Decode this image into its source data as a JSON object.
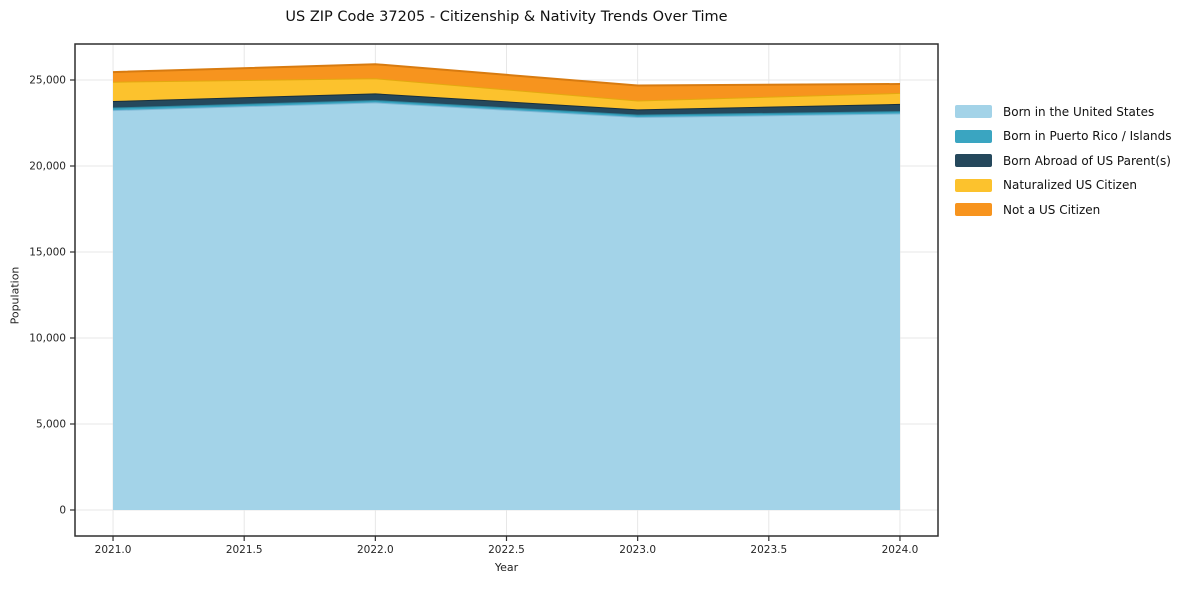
{
  "chart_data": {
    "type": "area",
    "stacked": true,
    "title": "US ZIP Code 37205 - Citizenship & Nativity Trends Over Time",
    "xlabel": "Year",
    "ylabel": "Population",
    "x": [
      2021,
      2022,
      2023,
      2024
    ],
    "series": [
      {
        "name": "Born in the United States",
        "values": [
          23250,
          23700,
          22850,
          23050
        ],
        "color": "#a3d3e8",
        "edge": "#7fb8d6"
      },
      {
        "name": "Born in Puerto Rico / Islands",
        "values": [
          150,
          130,
          140,
          140
        ],
        "color": "#3aa5c1",
        "edge": "#2c87a0"
      },
      {
        "name": "Born Abroad of US Parent(s)",
        "values": [
          380,
          390,
          300,
          420
        ],
        "color": "#25485c",
        "edge": "#182f3d"
      },
      {
        "name": "Naturalized US Citizen",
        "values": [
          1120,
          880,
          520,
          640
        ],
        "color": "#fcc22d",
        "edge": "#e3a90f"
      },
      {
        "name": "Not a US Citizen",
        "values": [
          560,
          820,
          870,
          520
        ],
        "color": "#f7941e",
        "edge": "#d87b10"
      }
    ],
    "xticks": [
      2021.0,
      2021.5,
      2022.0,
      2022.5,
      2023.0,
      2023.5,
      2024.0
    ],
    "xtick_labels": [
      "2021.0",
      "2021.5",
      "2022.0",
      "2022.5",
      "2023.0",
      "2023.5",
      "2024.0"
    ],
    "yticks": [
      0,
      5000,
      10000,
      15000,
      20000,
      25000
    ],
    "ytick_labels": [
      "0",
      "5,000",
      "10,000",
      "15,000",
      "20,000",
      "25,000"
    ],
    "xlim": [
      2020.855,
      2024.145
    ],
    "ylim": [
      -1512,
      27093
    ],
    "grid": true,
    "grid_color": "#e7e7e7",
    "spine_color": "#2f2f2f",
    "tick_label_color": "#262626",
    "legend_position": "right"
  }
}
